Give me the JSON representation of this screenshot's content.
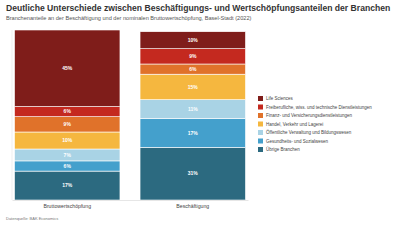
{
  "chart_data": {
    "type": "bar",
    "title": "Deutliche Unterschiede zwischen Beschäftigungs- und Wertschöpfungsanteilen der Branchen",
    "subtitle": "Branchenanteile an der Beschäftigung und der nominalen Bruttowertschöpfung, Basel-Stadt (2022)",
    "source": "Datenquelle: BAK Economics",
    "categories": [
      "Bruttowertschöpfung",
      "Beschäftigung"
    ],
    "series": [
      {
        "name": "Life Sciences",
        "color": "#7f1d1a",
        "values": [
          45,
          10
        ],
        "value_labels": [
          "45%",
          "10%"
        ]
      },
      {
        "name": "Freiberufliche, wiss. und technische Dienstleistungen",
        "color": "#c4291f",
        "values": [
          6,
          9
        ],
        "value_labels": [
          "6%",
          "9%"
        ]
      },
      {
        "name": "Finanz- und Versicherungsdienstleistungen",
        "color": "#e0722a",
        "values": [
          9,
          6
        ],
        "value_labels": [
          "9%",
          "6%"
        ]
      },
      {
        "name": "Handel, Verkehr und Lagerei",
        "color": "#f5b73f",
        "values": [
          10,
          15
        ],
        "value_labels": [
          "10%",
          "15%"
        ]
      },
      {
        "name": "Öffentliche Verwaltung und Bildungswesen",
        "color": "#a9d3e5",
        "values": [
          7,
          11
        ],
        "value_labels": [
          "7%",
          "11%"
        ]
      },
      {
        "name": "Gesundheits- und Sozialwesen",
        "color": "#44a0cc",
        "values": [
          6,
          17
        ],
        "value_labels": [
          "6%",
          "17%"
        ]
      },
      {
        "name": "Übrige Branchen",
        "color": "#2c6a80",
        "values": [
          17,
          31
        ],
        "value_labels": [
          "17%",
          "31%"
        ]
      }
    ],
    "ylim": [
      0,
      100
    ],
    "stacked": true,
    "data_labels": true,
    "legend": "right",
    "tick_labels": "x"
  }
}
